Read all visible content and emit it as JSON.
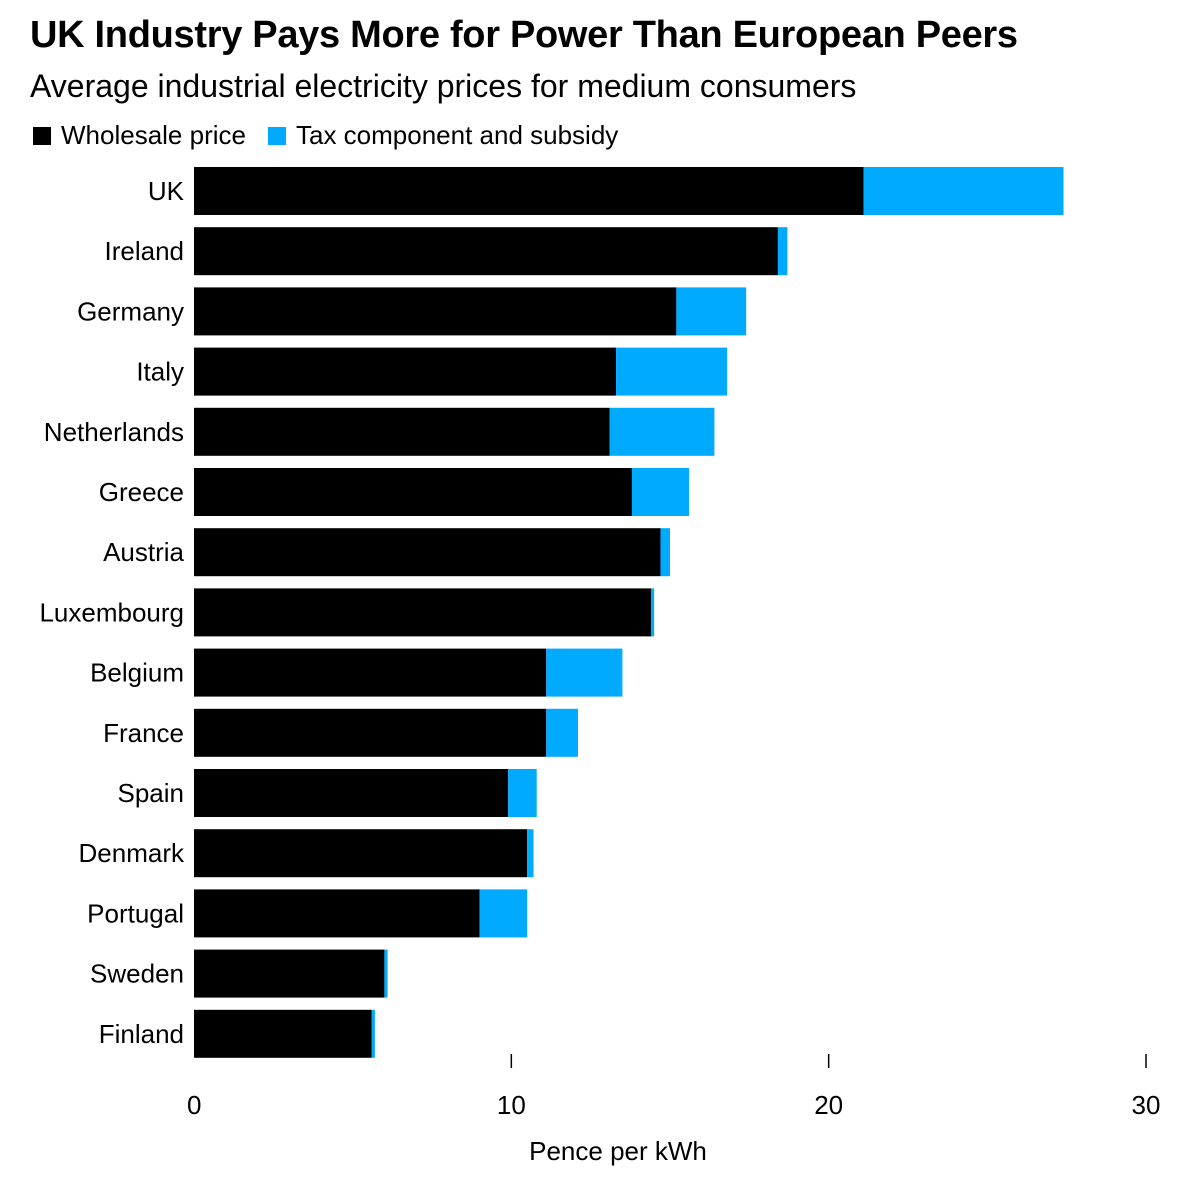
{
  "chart_data": {
    "type": "bar",
    "orientation": "horizontal",
    "stacked": true,
    "title": "UK Industry Pays More for Power Than European Peers",
    "subtitle": "Average industrial electricity prices for medium consumers",
    "xlabel": "Pence per kWh",
    "ylabel": "",
    "xlim": [
      0,
      30
    ],
    "xticks": [
      0,
      10,
      20,
      30
    ],
    "grid": false,
    "legend_position": "top-left",
    "categories": [
      "UK",
      "Ireland",
      "Germany",
      "Italy",
      "Netherlands",
      "Greece",
      "Austria",
      "Luxembourg",
      "Belgium",
      "France",
      "Spain",
      "Denmark",
      "Portugal",
      "Sweden",
      "Finland"
    ],
    "series": [
      {
        "name": "Wholesale price",
        "color": "#000000",
        "values": [
          21.1,
          18.4,
          15.2,
          13.3,
          13.1,
          13.8,
          14.7,
          14.4,
          11.1,
          11.1,
          9.9,
          10.5,
          9.0,
          6.0,
          5.6
        ]
      },
      {
        "name": "Tax component and subsidy",
        "color": "#00aaff",
        "values": [
          6.3,
          0.3,
          2.2,
          3.5,
          3.3,
          1.8,
          0.3,
          0.1,
          2.4,
          1.0,
          0.9,
          0.2,
          1.5,
          0.1,
          0.1
        ]
      }
    ]
  }
}
